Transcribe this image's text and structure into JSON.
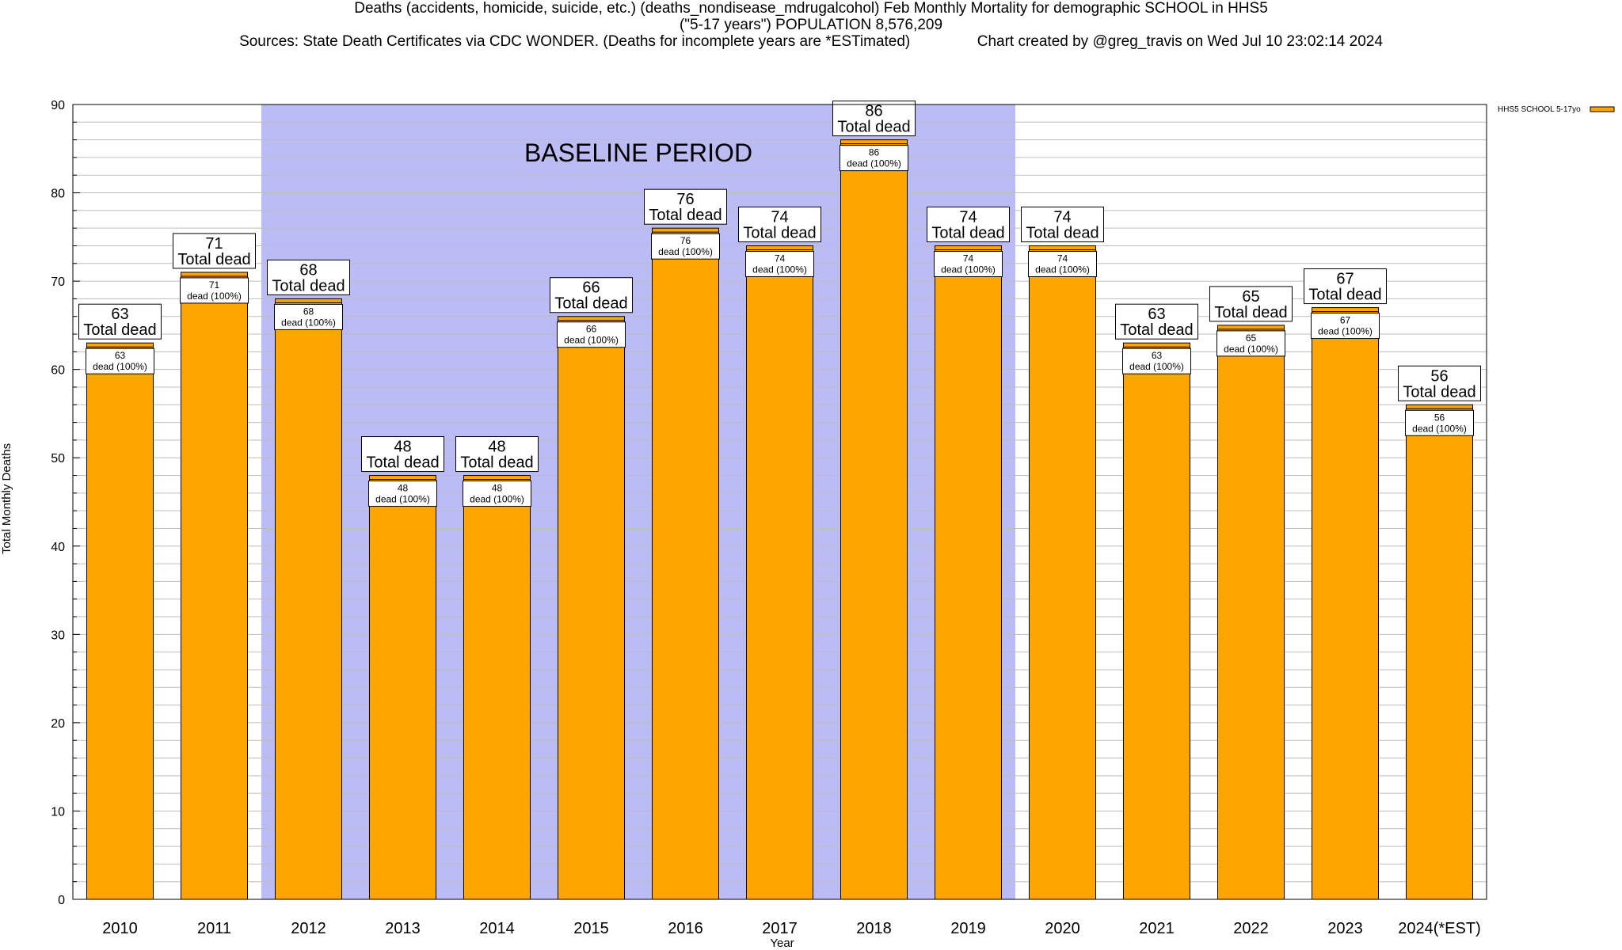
{
  "titles": {
    "line1": "Deaths (accidents, homicide, suicide, etc.) (deaths_nondisease_mdrugalcohol) Feb Monthly Mortality for demographic SCHOOL in HHS5",
    "line2": "(\"5-17 years\") POPULATION 8,576,209",
    "line3": "Sources: State Death Certificates via CDC WONDER. (Deaths for incomplete years are *ESTimated)                Chart created by @greg_travis on Wed Jul 10 23:02:14 2024"
  },
  "chart_data": {
    "type": "bar",
    "xlabel": "Year",
    "ylabel": "Total Monthly Deaths",
    "ylim": [
      0,
      90
    ],
    "yticks": [
      0,
      10,
      20,
      30,
      40,
      50,
      60,
      70,
      80,
      90
    ],
    "grid": true,
    "legend_position": "top-right",
    "categories": [
      "2010",
      "2011",
      "2012",
      "2013",
      "2014",
      "2015",
      "2016",
      "2017",
      "2018",
      "2019",
      "2020",
      "2021",
      "2022",
      "2023",
      "2024(*EST)"
    ],
    "series": [
      {
        "name": "HHS5 SCHOOL 5-17yo",
        "color": "#ffa500",
        "values": [
          63,
          71,
          68,
          48,
          48,
          66,
          76,
          74,
          86,
          74,
          74,
          63,
          65,
          67,
          56
        ]
      }
    ],
    "total_label": "Total dead",
    "inner_label": "dead (100%)",
    "baseline": {
      "label": "BASELINE PERIOD",
      "start": "2012",
      "end": "2019",
      "color": "#bbbbf5"
    }
  }
}
